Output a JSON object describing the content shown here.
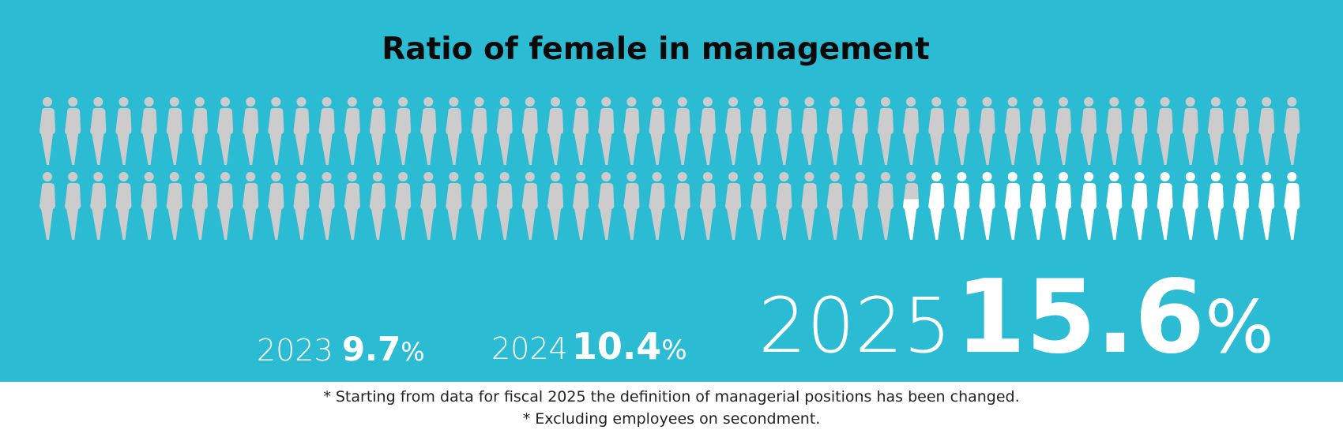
{
  "chart_data": {
    "type": "pictogram",
    "title": "Ratio of female in management",
    "total_figures": 100,
    "figures_per_row": 50,
    "highlight_percent": 15.6,
    "series": [
      {
        "year": "2023",
        "value": 9.7,
        "label": "9.7",
        "unit": "%"
      },
      {
        "year": "2024",
        "value": 10.4,
        "label": "10.4",
        "unit": "%"
      },
      {
        "year": "2025",
        "value": 15.6,
        "label": "15.6",
        "unit": "%"
      }
    ],
    "colors": {
      "background": "#2bbcd4",
      "base_figure": "#cccccc",
      "highlight_figure": "#ffffff"
    }
  },
  "notes": [
    "* Starting from data for fiscal 2025 the definition of managerial positions has been changed.",
    "* Excluding employees on secondment."
  ]
}
